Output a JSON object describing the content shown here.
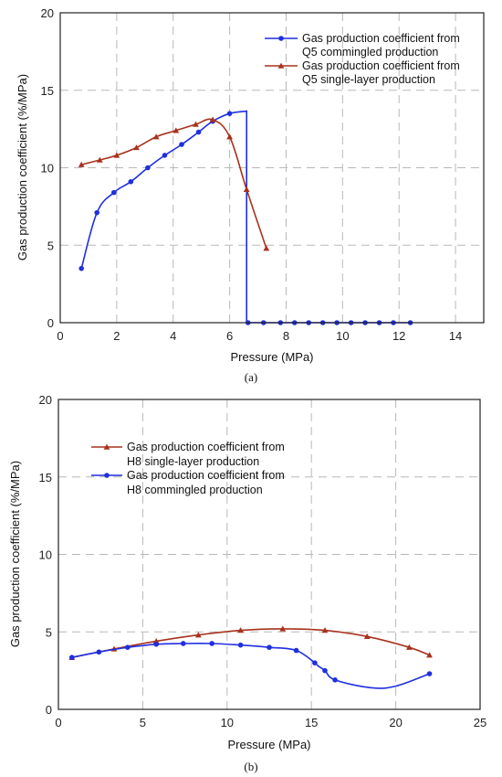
{
  "colors": {
    "blue": "#1f2fe0",
    "red": "#a8321e"
  },
  "chart_data": [
    {
      "type": "line",
      "caption": "(a)",
      "xlabel": "Pressure (MPa)",
      "ylabel": "Gas production coefficient (%/MPa)",
      "xlim": [
        0,
        15
      ],
      "ylim": [
        0,
        20
      ],
      "xticks": [
        0,
        2,
        4,
        6,
        8,
        10,
        12,
        14
      ],
      "yticks": [
        0,
        5,
        10,
        15,
        20
      ],
      "grid": true,
      "legend_position": "top-right",
      "series": [
        {
          "name": "Gas production coefficient from Q5 commingled production",
          "legend_lines": [
            "Gas production coefficient from",
            "Q5 commingled production"
          ],
          "color": "#1f2fe0",
          "marker": "circle",
          "x": [
            0.75,
            1.3,
            1.9,
            2.5,
            3.1,
            3.7,
            4.3,
            4.9,
            5.4,
            6.0,
            6.6,
            6.6,
            6.65,
            7.2,
            7.8,
            8.3,
            8.8,
            9.3,
            9.8,
            10.3,
            10.8,
            11.3,
            11.8,
            12.4
          ],
          "y": [
            3.5,
            7.1,
            8.4,
            9.1,
            10.0,
            10.8,
            11.5,
            12.3,
            13.0,
            13.5,
            13.65,
            0,
            0,
            0,
            0,
            0,
            0,
            0,
            0,
            0,
            0,
            0,
            0,
            0
          ],
          "marker_mask": [
            1,
            1,
            1,
            1,
            1,
            1,
            1,
            1,
            1,
            1,
            0,
            0,
            1,
            1,
            1,
            1,
            1,
            1,
            1,
            1,
            1,
            1,
            1,
            1
          ]
        },
        {
          "name": "Gas production coefficient from Q5 single-layer production",
          "legend_lines": [
            "Gas production coefficient from",
            "Q5 single-layer production"
          ],
          "color": "#a8321e",
          "marker": "triangle",
          "x": [
            0.75,
            1.4,
            2.0,
            2.7,
            3.4,
            4.1,
            4.8,
            5.4,
            6.0,
            6.6,
            7.3
          ],
          "y": [
            10.2,
            10.5,
            10.8,
            11.3,
            12.0,
            12.4,
            12.8,
            13.1,
            12.0,
            8.6,
            4.8
          ]
        }
      ]
    },
    {
      "type": "line",
      "caption": "(b)",
      "xlabel": "Pressure (MPa)",
      "ylabel": "Gas production coefficient (%/MPa)",
      "xlim": [
        0,
        25
      ],
      "ylim": [
        0,
        20
      ],
      "xticks": [
        0,
        5,
        10,
        15,
        20,
        25
      ],
      "yticks": [
        0,
        5,
        10,
        15,
        20
      ],
      "grid": true,
      "legend_position": "top-left",
      "series": [
        {
          "name": "Gas production coefficient from H8 single-layer production",
          "legend_lines": [
            "Gas production coefficient from",
            "H8 single-layer production"
          ],
          "color": "#a8321e",
          "marker": "triangle",
          "x": [
            0.8,
            3.3,
            5.8,
            8.3,
            10.8,
            13.3,
            15.8,
            18.3,
            20.8,
            22.0
          ],
          "y": [
            3.35,
            3.9,
            4.4,
            4.8,
            5.1,
            5.2,
            5.1,
            4.7,
            4.0,
            3.5
          ]
        },
        {
          "name": "Gas production coefficient from H8 commingled production",
          "legend_lines": [
            "Gas production coefficient from",
            "H8 commingled production"
          ],
          "color": "#1f2fe0",
          "marker": "circle",
          "x": [
            0.8,
            2.4,
            4.1,
            5.8,
            7.4,
            9.1,
            10.8,
            12.5,
            14.1,
            15.2,
            15.4,
            15.8,
            16.4,
            18.5,
            20.0,
            22.0
          ],
          "y": [
            3.35,
            3.7,
            4.0,
            4.2,
            4.25,
            4.25,
            4.15,
            4.0,
            3.8,
            3.0,
            2.8,
            2.5,
            1.9,
            1.4,
            1.5,
            2.3
          ],
          "marker_mask": [
            1,
            1,
            1,
            1,
            1,
            1,
            1,
            1,
            1,
            1,
            0,
            1,
            1,
            0,
            0,
            1
          ]
        }
      ]
    }
  ]
}
